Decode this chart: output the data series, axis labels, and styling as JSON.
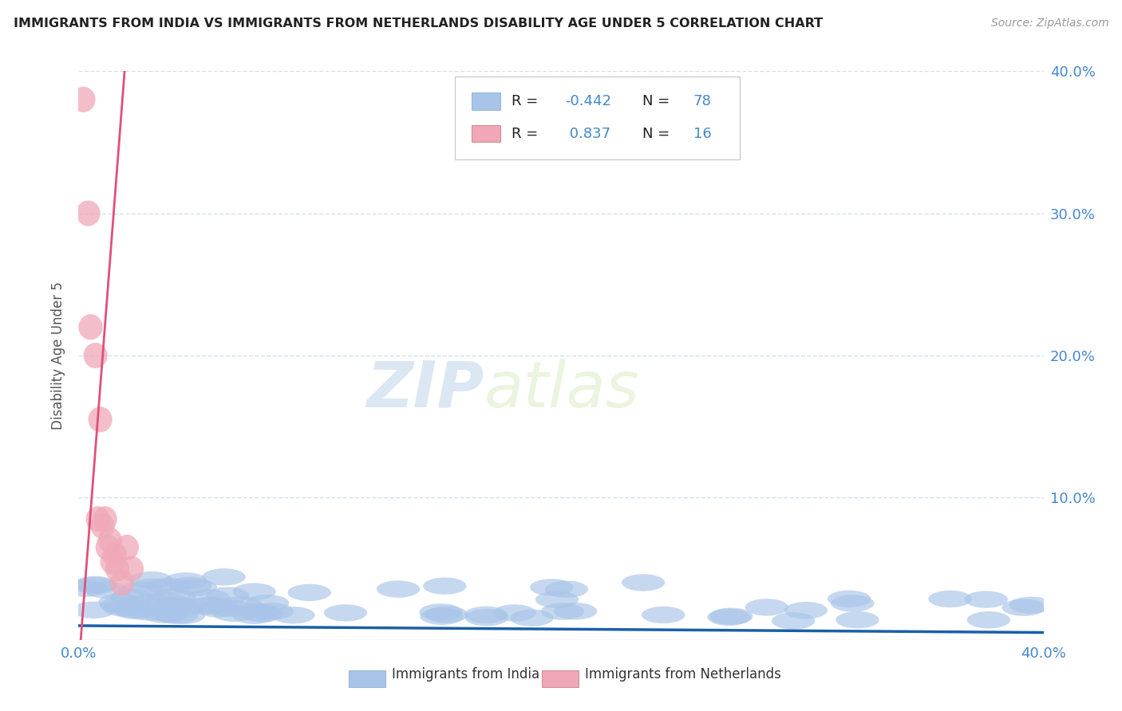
{
  "title": "IMMIGRANTS FROM INDIA VS IMMIGRANTS FROM NETHERLANDS DISABILITY AGE UNDER 5 CORRELATION CHART",
  "source": "Source: ZipAtlas.com",
  "xlim": [
    0.0,
    0.4
  ],
  "ylim": [
    0.0,
    0.4
  ],
  "india_R": -0.442,
  "india_N": 78,
  "netherlands_R": 0.837,
  "netherlands_N": 16,
  "blue_color": "#a8c4e8",
  "pink_color": "#f0a8b8",
  "blue_line_color": "#1a5fa8",
  "pink_line_color": "#e0507a",
  "title_color": "#222222",
  "source_color": "#999999",
  "axis_value_color": "#4488cc",
  "grid_color": "#ccddee",
  "background_color": "#ffffff",
  "watermark_zip": "ZIP",
  "watermark_atlas": "atlas",
  "legend_R1": "-0.442",
  "legend_N1": "78",
  "legend_R2": "0.837",
  "legend_N2": "16",
  "label_india": "Immigrants from India",
  "label_netherlands": "Immigrants from Netherlands"
}
